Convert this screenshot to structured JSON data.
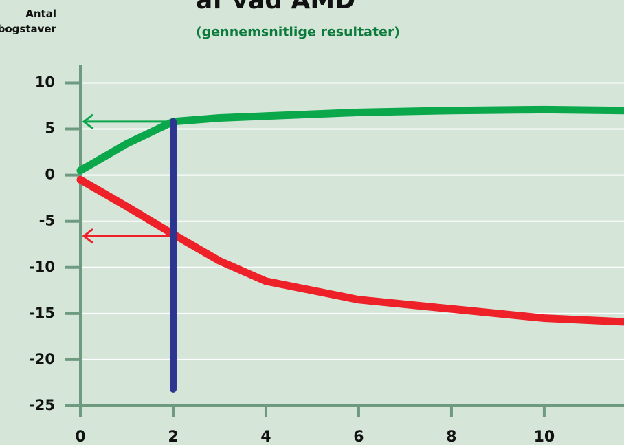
{
  "chart_data": {
    "type": "line",
    "title": "af våd AMD",
    "subtitle": "(gennemsnitlige resultater)",
    "y_label": "Antal bogstaver",
    "x": [
      0,
      1,
      2,
      3,
      4,
      6,
      8,
      10,
      11.7
    ],
    "series": [
      {
        "name": "green",
        "color": "#0aa84a",
        "values": [
          0.5,
          3.4,
          5.8,
          6.2,
          6.4,
          6.8,
          7.0,
          7.1,
          7.0
        ]
      },
      {
        "name": "red",
        "color": "#ee2028",
        "values": [
          -0.5,
          -3.4,
          -6.4,
          -9.3,
          -11.5,
          -13.5,
          -14.5,
          -15.5,
          -15.9
        ]
      }
    ],
    "marker": {
      "x": 2,
      "y_range": [
        -23.2,
        5.8
      ],
      "color": "#2c3590"
    },
    "arrows": [
      {
        "y": 5.8,
        "color": "#0aa84a"
      },
      {
        "y": -6.6,
        "color": "#ee2028"
      }
    ],
    "xlim": [
      0,
      11.72
    ],
    "ylim": [
      -25,
      11.9
    ],
    "xticks": [
      0,
      2,
      4,
      6,
      8,
      10
    ],
    "yticks": [
      10,
      5,
      0,
      -5,
      -10,
      -15,
      -20,
      -25
    ],
    "grid": true
  }
}
